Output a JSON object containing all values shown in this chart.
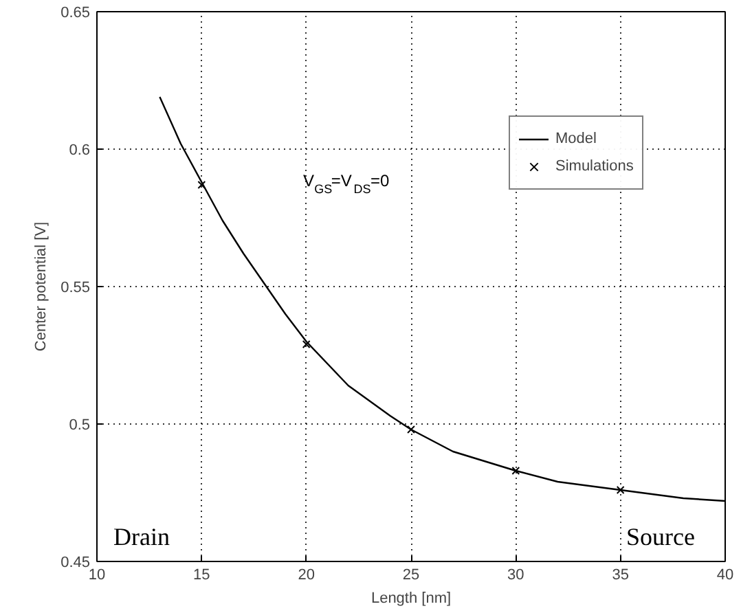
{
  "chart_data": {
    "type": "line",
    "xlabel": "Length [nm]",
    "ylabel": "Center potential [V]",
    "xlim": [
      10,
      40
    ],
    "ylim": [
      0.45,
      0.65
    ],
    "xticks": [
      10,
      15,
      20,
      25,
      30,
      35,
      40
    ],
    "yticks": [
      0.45,
      0.5,
      0.55,
      0.6,
      0.65
    ],
    "grid": true,
    "legend": "top right",
    "series": [
      {
        "name": "Model",
        "color": "#000000",
        "marker": "none",
        "line_style": "solid",
        "x": [
          13,
          14,
          15,
          16,
          17,
          18,
          19,
          20,
          22,
          24,
          25,
          27,
          30,
          32,
          35,
          38,
          40
        ],
        "values": [
          0.619,
          0.602,
          0.588,
          0.574,
          0.562,
          0.551,
          0.54,
          0.53,
          0.514,
          0.503,
          0.498,
          0.49,
          0.483,
          0.479,
          0.476,
          0.473,
          0.472
        ]
      },
      {
        "name": "Simulations",
        "type": "scatter",
        "color": "#000000",
        "marker": "cross",
        "x": [
          15,
          20,
          25,
          30,
          35
        ],
        "values": [
          0.587,
          0.529,
          0.498,
          0.483,
          0.476
        ]
      }
    ],
    "annotations": [
      "V$_{GS}$=V$_{DS}$=0",
      "Drain",
      "Source"
    ]
  }
}
